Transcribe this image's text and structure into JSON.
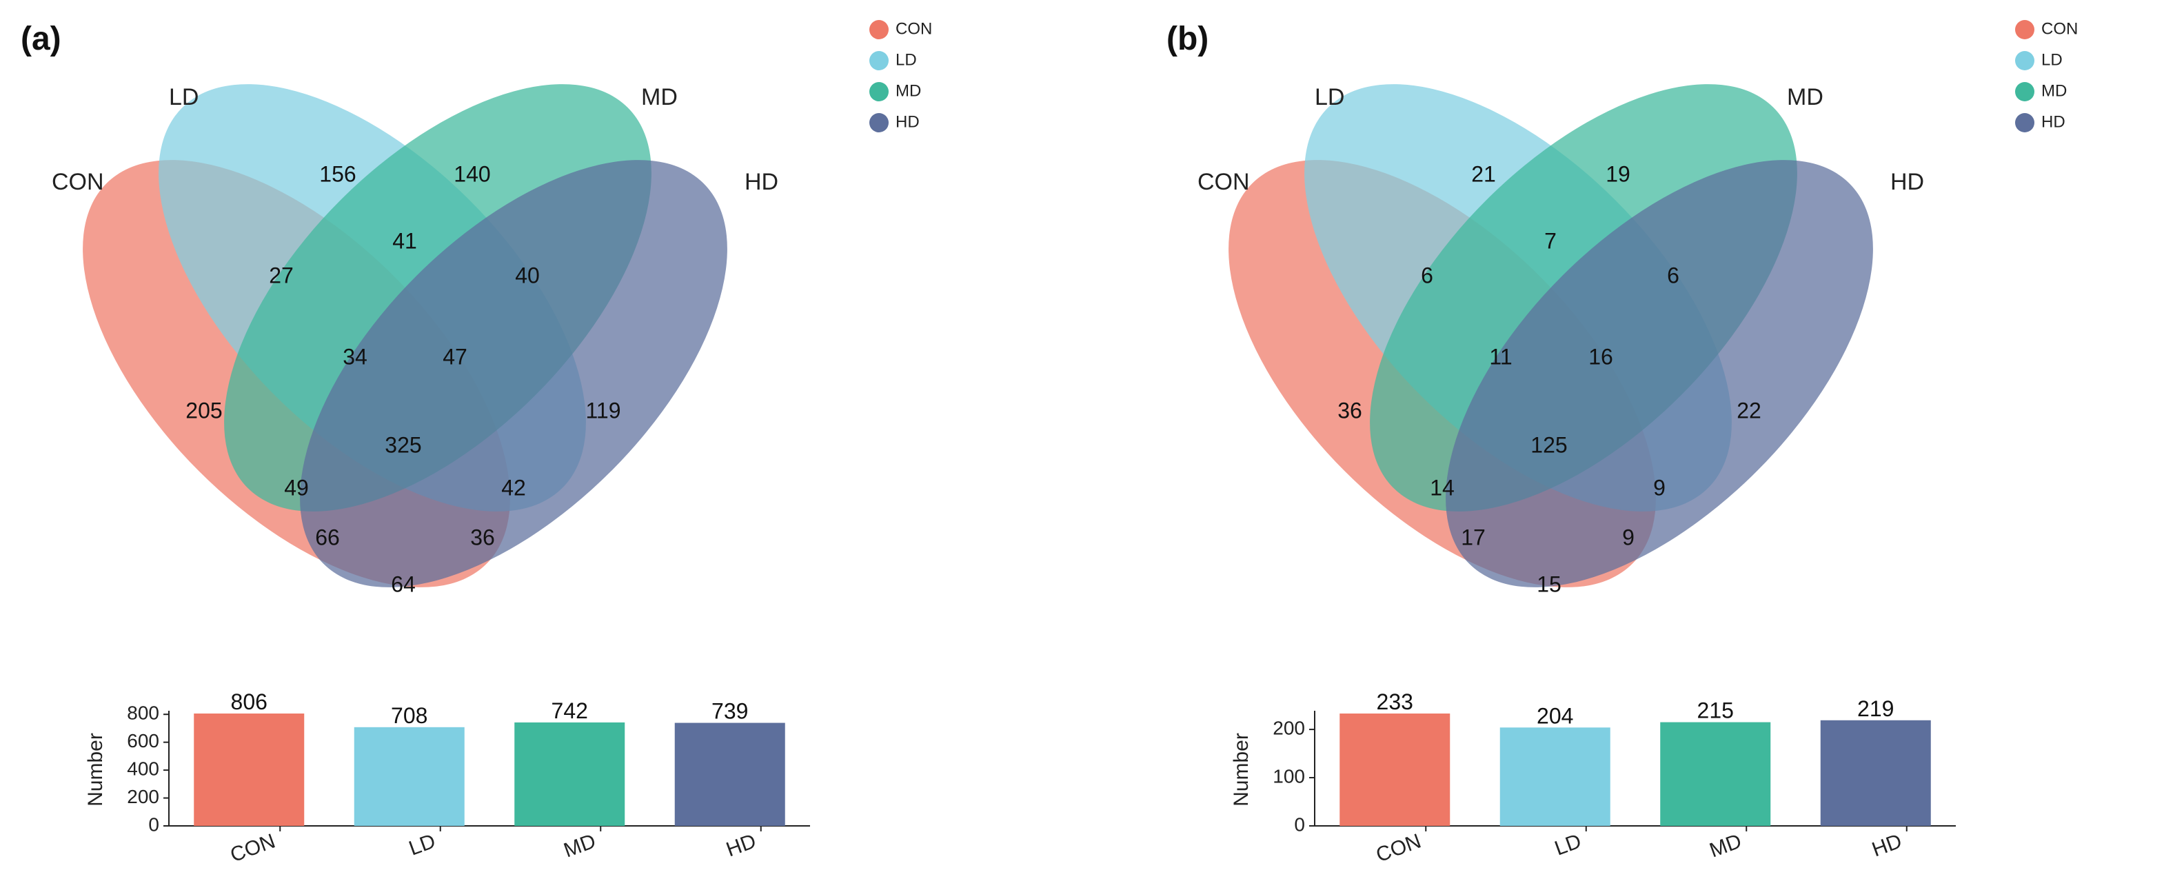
{
  "chart_data": [
    {
      "type": "venn",
      "panel_label": "(a)",
      "sets": [
        "CON",
        "LD",
        "MD",
        "HD"
      ],
      "legend": [
        "CON",
        "LD",
        "MD",
        "HD"
      ],
      "region_values": {
        "CON": 205,
        "LD": 156,
        "MD": 140,
        "HD": 119,
        "CON_LD": 27,
        "LD_MD": 41,
        "MD_HD": 40,
        "CON_HD": 64,
        "CON_LD_MD": 34,
        "LD_MD_HD": 47,
        "CON_MD": 49,
        "LD_HD": 42,
        "CON_MD_HD": 66,
        "CON_LD_HD": 36,
        "ALL": 325
      },
      "bar": {
        "type": "bar",
        "categories": [
          "CON",
          "LD",
          "MD",
          "HD"
        ],
        "values": [
          806,
          708,
          742,
          739
        ],
        "ylabel": "Number",
        "ylim": [
          0,
          806
        ],
        "yticks": [
          0,
          200,
          400,
          600,
          800
        ]
      }
    },
    {
      "type": "venn",
      "panel_label": "(b)",
      "sets": [
        "CON",
        "LD",
        "MD",
        "HD"
      ],
      "legend": [
        "CON",
        "LD",
        "MD",
        "HD"
      ],
      "region_values": {
        "CON": 36,
        "LD": 21,
        "MD": 19,
        "HD": 22,
        "CON_LD": 6,
        "LD_MD": 7,
        "MD_HD": 6,
        "CON_HD": 15,
        "CON_LD_MD": 11,
        "LD_MD_HD": 16,
        "CON_MD": 14,
        "LD_HD": 9,
        "CON_MD_HD": 17,
        "CON_LD_HD": 9,
        "ALL": 125
      },
      "bar": {
        "type": "bar",
        "categories": [
          "CON",
          "LD",
          "MD",
          "HD"
        ],
        "values": [
          233,
          204,
          215,
          219
        ],
        "ylabel": "Number",
        "ylim": [
          0,
          233
        ],
        "yticks": [
          0,
          100,
          200
        ]
      }
    }
  ],
  "colors": {
    "CON": "#ee7866",
    "LD": "#7fcfe2",
    "MD": "#3fb89c",
    "HD": "#5d6f9c"
  }
}
